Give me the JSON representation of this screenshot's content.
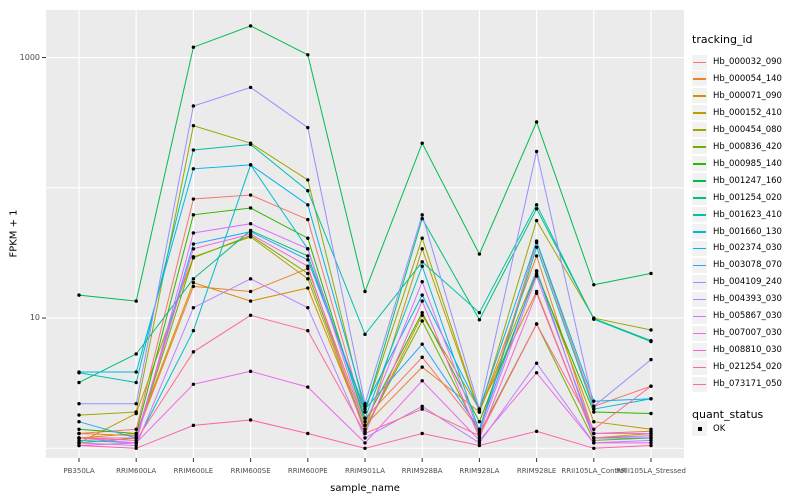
{
  "theme": {
    "panel_bg": "#EBEBEB",
    "grid_color": "#FFFFFF",
    "legend_key_bg": "#F2F2F2",
    "tick_label_color": "#4D4D4D",
    "point_color": "#000000"
  },
  "chart_data": {
    "type": "line",
    "title": "",
    "xlabel": "sample_name",
    "ylabel": "FPKM + 1",
    "x_categories": [
      "PB350LA",
      "RRIM600LA",
      "RRIM600LE",
      "RRIM600SE",
      "RRIM600PE",
      "RRIM901LA",
      "RRIM928BA",
      "RRIM928LA",
      "RRIM928LE",
      "RRII105LA_Control",
      "RRII105LA_Stressed"
    ],
    "y_scale": "log10",
    "y_axis_tick_labels": [
      "1000",
      "10"
    ],
    "y_axis_tick_values": [
      1000,
      10
    ],
    "y_gridline_values": [
      1,
      10,
      100,
      1000
    ],
    "ylim": [
      0.85,
      2200
    ],
    "grid": true,
    "legend_position": "right",
    "legend_title": "tracking_id",
    "series": [
      {
        "name": "Hb_000032_090",
        "color": "#F8766D",
        "values": [
          1.3,
          1.4,
          82,
          88,
          57,
          1.7,
          5.0,
          1.4,
          38,
          2.1,
          3.0
        ]
      },
      {
        "name": "Hb_000054_140",
        "color": "#E9842C",
        "values": [
          1.3,
          1.25,
          17.5,
          16,
          24,
          1.5,
          4.2,
          1.9,
          30,
          1.3,
          1.35
        ]
      },
      {
        "name": "Hb_000071_090",
        "color": "#D69100",
        "values": [
          1.2,
          1.3,
          18.7,
          13.5,
          17,
          1.4,
          10.5,
          2.0,
          16,
          1.2,
          1.3
        ]
      },
      {
        "name": "Hb_000152_410",
        "color": "#BC9D00",
        "values": [
          1.1,
          1.85,
          29.5,
          42,
          20,
          1.35,
          34,
          1.9,
          23,
          1.6,
          1.4
        ]
      },
      {
        "name": "Hb_000454_080",
        "color": "#9CA700",
        "values": [
          1.8,
          1.9,
          300,
          220,
          115,
          1.9,
          41,
          1.9,
          56,
          10,
          8.1
        ]
      },
      {
        "name": "Hb_000836_420",
        "color": "#6FB000",
        "values": [
          1.1,
          1.2,
          29,
          43,
          22,
          1.4,
          9.5,
          1.3,
          9.0,
          1.15,
          1.2
        ]
      },
      {
        "name": "Hb_000985_140",
        "color": "#2DB600",
        "values": [
          1.4,
          1.3,
          62,
          70,
          41,
          1.6,
          11,
          1.6,
          22,
          1.9,
          1.85
        ]
      },
      {
        "name": "Hb_001247_160",
        "color": "#00BB4B",
        "values": [
          15,
          13.5,
          1200,
          1750,
          1050,
          16,
          220,
          31,
          320,
          18,
          22
        ]
      },
      {
        "name": "Hb_001254_020",
        "color": "#00BF7B",
        "values": [
          3.2,
          5.3,
          20,
          47,
          30,
          1.9,
          58,
          9.7,
          69,
          9.9,
          6.7
        ]
      },
      {
        "name": "Hb_001623_410",
        "color": "#00C0AC",
        "values": [
          3.8,
          3.2,
          195,
          215,
          95,
          7.5,
          27,
          11,
          74,
          9.8,
          6.6
        ]
      },
      {
        "name": "Hb_001660_130",
        "color": "#00BDD2",
        "values": [
          1.15,
          1.1,
          8.0,
          150,
          34,
          1.7,
          25,
          1.35,
          35,
          2.0,
          2.4
        ]
      },
      {
        "name": "Hb_002374_030",
        "color": "#00B5EC",
        "values": [
          3.85,
          3.85,
          140,
          150,
          74,
          2.1,
          15,
          2.0,
          39,
          2.3,
          2.4
        ]
      },
      {
        "name": "Hb_003078_070",
        "color": "#29A3FF",
        "values": [
          1.6,
          1.2,
          37,
          46,
          28,
          2.0,
          6.3,
          1.4,
          23,
          1.2,
          1.2
        ]
      },
      {
        "name": "Hb_004109_240",
        "color": "#9590FF",
        "values": [
          2.2,
          2.2,
          425,
          590,
          290,
          2.2,
          62,
          2.0,
          190,
          2.1,
          4.8
        ]
      },
      {
        "name": "Hb_004393_030",
        "color": "#BC81FF",
        "values": [
          1.1,
          1.05,
          12,
          20,
          12,
          1.2,
          2.1,
          1.1,
          4.5,
          1.1,
          1.15
        ]
      },
      {
        "name": "Hb_005867_030",
        "color": "#DC71FA",
        "values": [
          1.2,
          1.1,
          45,
          53,
          34,
          1.5,
          19,
          1.3,
          21,
          1.3,
          1.3
        ]
      },
      {
        "name": "Hb_007007_030",
        "color": "#EF67EB",
        "values": [
          1.05,
          1.1,
          3.1,
          3.9,
          2.95,
          1.1,
          3.3,
          1.15,
          3.8,
          1.1,
          1.1
        ]
      },
      {
        "name": "Hb_008810_030",
        "color": "#FB61D7",
        "values": [
          1.2,
          1.2,
          34,
          44,
          25,
          1.3,
          13.5,
          1.2,
          15.5,
          1.2,
          1.25
        ]
      },
      {
        "name": "Hb_021254_020",
        "color": "#FF62AD",
        "values": [
          1.05,
          1.0,
          1.5,
          1.65,
          1.3,
          1.0,
          1.3,
          1.05,
          1.35,
          1.0,
          1.05
        ]
      },
      {
        "name": "Hb_073171_050",
        "color": "#FF6C91",
        "values": [
          1.2,
          1.15,
          5.5,
          10.5,
          8.0,
          1.3,
          2.0,
          1.25,
          9.0,
          1.4,
          3.0
        ]
      }
    ],
    "secondary_legend": {
      "title": "quant_status",
      "items": [
        {
          "label": "OK",
          "marker": "square-point",
          "color": "#000000"
        }
      ]
    }
  }
}
